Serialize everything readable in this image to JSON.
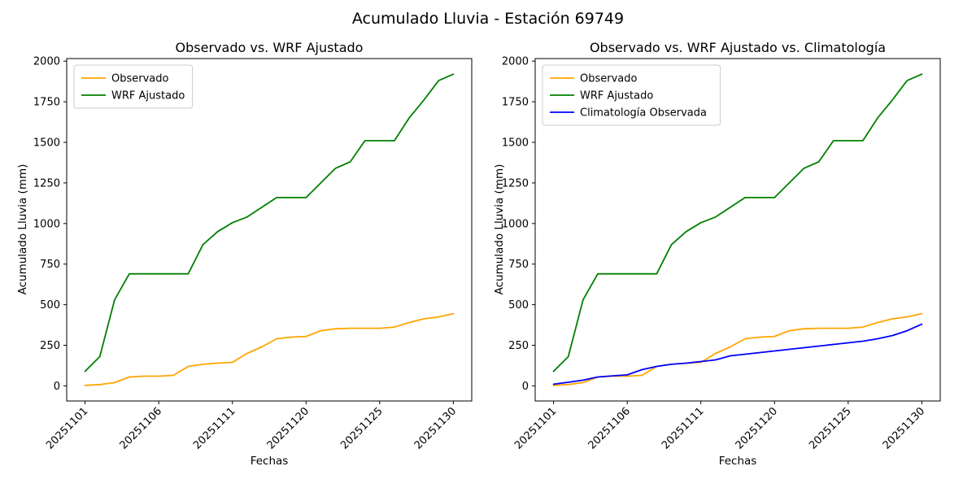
{
  "figure": {
    "suptitle": "Acumulado Lluvia - Estación 69749"
  },
  "chart_data": [
    {
      "type": "line",
      "title": "Observado vs. WRF Ajustado",
      "xlabel": "Fechas",
      "ylabel": "Acumulado Lluvia (mm)",
      "grid": false,
      "legend_position": "upper left",
      "ylim": [
        -93,
        2016
      ],
      "y_ticks": [
        0,
        250,
        500,
        750,
        1000,
        1250,
        1500,
        1750,
        2000
      ],
      "x_tick_indices": [
        0,
        5,
        10,
        15,
        20,
        25
      ],
      "x_tick_labels": [
        "20251101",
        "20251106",
        "20251111",
        "20251120",
        "20251125",
        "20251130"
      ],
      "x": [
        "20251101",
        "20251102",
        "20251103",
        "20251104",
        "20251105",
        "20251106",
        "20251107",
        "20251108",
        "20251109",
        "20251110",
        "20251111",
        "20251116",
        "20251117",
        "20251118",
        "20251119",
        "20251120",
        "20251121",
        "20251122",
        "20251123",
        "20251124",
        "20251125",
        "20251126",
        "20251127",
        "20251128",
        "20251129",
        "20251130"
      ],
      "series": [
        {
          "name": "Observado",
          "color": "#ffa500",
          "values": [
            3,
            8,
            20,
            55,
            60,
            60,
            65,
            120,
            133,
            140,
            145,
            200,
            240,
            290,
            300,
            305,
            340,
            352,
            355,
            355,
            355,
            362,
            390,
            413,
            425,
            445
          ]
        },
        {
          "name": "WRF Ajustado",
          "color": "#008000",
          "values": [
            90,
            180,
            530,
            690,
            690,
            690,
            690,
            690,
            870,
            950,
            1005,
            1040,
            1100,
            1160,
            1160,
            1160,
            1250,
            1340,
            1380,
            1510,
            1510,
            1510,
            1650,
            1760,
            1880,
            1920
          ]
        }
      ]
    },
    {
      "type": "line",
      "title": "Observado vs. WRF Ajustado vs. Climatología",
      "xlabel": "Fechas",
      "ylabel": "Acumulado Lluvia (mm)",
      "grid": false,
      "legend_position": "upper left",
      "ylim": [
        -93,
        2016
      ],
      "y_ticks": [
        0,
        250,
        500,
        750,
        1000,
        1250,
        1500,
        1750,
        2000
      ],
      "x_tick_indices": [
        0,
        5,
        10,
        15,
        20,
        25
      ],
      "x_tick_labels": [
        "20251101",
        "20251106",
        "20251111",
        "20251120",
        "20251125",
        "20251130"
      ],
      "x": [
        "20251101",
        "20251102",
        "20251103",
        "20251104",
        "20251105",
        "20251106",
        "20251107",
        "20251108",
        "20251109",
        "20251110",
        "20251111",
        "20251116",
        "20251117",
        "20251118",
        "20251119",
        "20251120",
        "20251121",
        "20251122",
        "20251123",
        "20251124",
        "20251125",
        "20251126",
        "20251127",
        "20251128",
        "20251129",
        "20251130"
      ],
      "series": [
        {
          "name": "Observado",
          "color": "#ffa500",
          "values": [
            3,
            8,
            20,
            55,
            60,
            60,
            65,
            120,
            133,
            140,
            145,
            200,
            240,
            290,
            300,
            305,
            340,
            352,
            355,
            355,
            355,
            362,
            390,
            413,
            425,
            445
          ]
        },
        {
          "name": "WRF Ajustado",
          "color": "#008000",
          "values": [
            90,
            180,
            530,
            690,
            690,
            690,
            690,
            690,
            870,
            950,
            1005,
            1040,
            1100,
            1160,
            1160,
            1160,
            1250,
            1340,
            1380,
            1510,
            1510,
            1510,
            1650,
            1760,
            1880,
            1920
          ]
        },
        {
          "name": "Climatología Observada",
          "color": "#0000ff",
          "values": [
            10,
            22,
            35,
            55,
            62,
            68,
            100,
            120,
            133,
            140,
            150,
            160,
            185,
            195,
            205,
            215,
            225,
            235,
            245,
            255,
            265,
            275,
            290,
            310,
            340,
            380
          ]
        }
      ]
    }
  ]
}
